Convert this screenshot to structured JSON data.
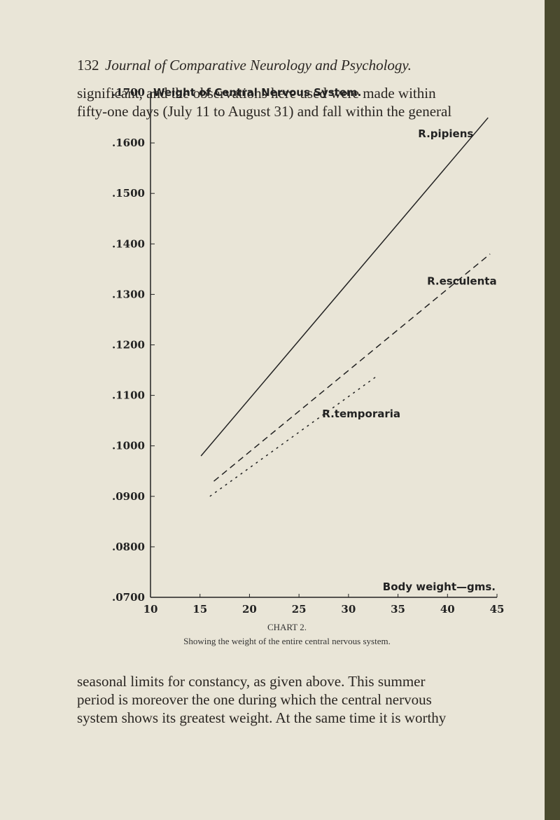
{
  "header": {
    "page_number": "132",
    "journal": "Journal of Comparative Neurology and Psychology."
  },
  "paragraph_before": [
    "significant, and the observations here used were made within",
    "fifty-one days (July 11 to August 31) and fall within the general"
  ],
  "chart_data": {
    "type": "line",
    "title": "Weight of Central Nervous System.",
    "x_label": "Body weight—gms.",
    "xlim": [
      10,
      45
    ],
    "xticks": [
      10,
      15,
      20,
      25,
      30,
      35,
      40,
      45
    ],
    "ylim": [
      0.07,
      0.17
    ],
    "yticks": [
      {
        "value": 0.07,
        "label": ".0700"
      },
      {
        "value": 0.08,
        "label": ".0800"
      },
      {
        "value": 0.09,
        "label": ".0900"
      },
      {
        "value": 0.1,
        "label": ".1000"
      },
      {
        "value": 0.11,
        "label": ".1100"
      },
      {
        "value": 0.12,
        "label": ".1200"
      },
      {
        "value": 0.13,
        "label": ".1300"
      },
      {
        "value": 0.14,
        "label": ".1400"
      },
      {
        "value": 0.15,
        "label": ".1500"
      },
      {
        "value": 0.16,
        "label": ".1600"
      },
      {
        "value": 0.17,
        "label": ".1700"
      }
    ],
    "series": [
      {
        "name": "R.pipiens",
        "color": "#222222",
        "style": "solid",
        "x": [
          15.1,
          44.1
        ],
        "values": [
          0.098,
          0.165
        ]
      },
      {
        "name": "R.esculenta",
        "color": "#222222",
        "style": "dashed",
        "x": [
          16.4,
          44.3
        ],
        "values": [
          0.093,
          0.138
        ]
      },
      {
        "name": "R.temporaria",
        "color": "#222222",
        "style": "dotted",
        "x": [
          16.0,
          33.0
        ],
        "values": [
          0.09,
          0.114
        ]
      }
    ],
    "caption": "CHART 2.",
    "caption_text": "Showing the weight of the entire central nervous system."
  },
  "paragraph_after": [
    "seasonal limits for constancy, as given above. This summer",
    "period is moreover the one during which the central nervous",
    "system shows its greatest weight. At the same time it is worthy"
  ]
}
